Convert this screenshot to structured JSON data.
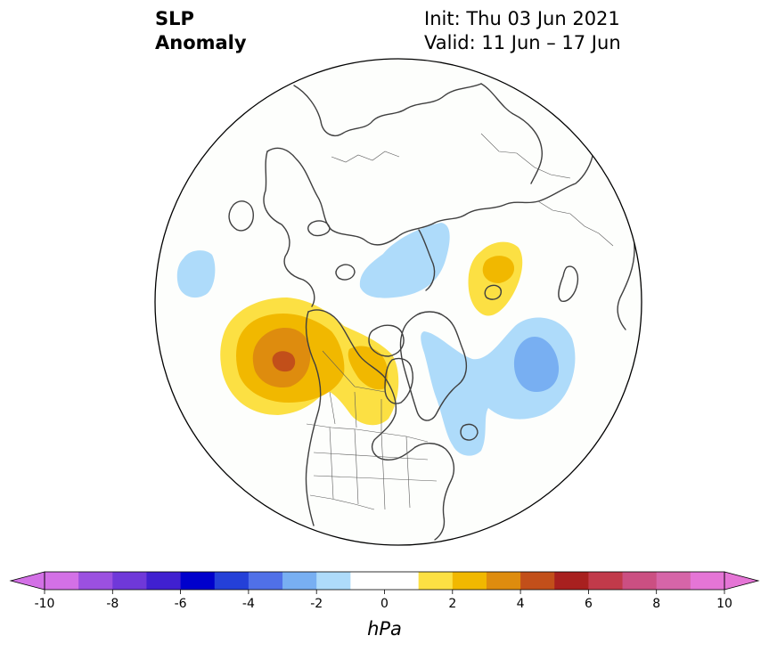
{
  "title": {
    "line1": "SLP",
    "line2": "Anomaly"
  },
  "run_info": {
    "init": "Init: Thu 03 Jun 2021",
    "valid": "Valid: 11 Jun – 17 Jun"
  },
  "map": {
    "projection": "north-polar-stereographic",
    "variable": "sea-level-pressure-anomaly",
    "ocean_color": "#fdfefc",
    "coast_color": "#3f3f3f",
    "features": [
      {
        "name": "positive-anomaly-gulf-of-alaska",
        "peak_hPa": 5
      },
      {
        "name": "positive-anomaly-western-canada",
        "peak_hPa": 2
      },
      {
        "name": "positive-anomaly-central-siberia",
        "peak_hPa": 2
      },
      {
        "name": "negative-anomaly-north-atlantic",
        "peak_hPa": -3
      },
      {
        "name": "negative-anomaly-barents-kara",
        "peak_hPa": -2
      },
      {
        "name": "negative-anomaly-north-pacific",
        "peak_hPa": -2
      }
    ]
  },
  "colorbar": {
    "units": "hPa",
    "tick_labels": [
      "-10",
      "-8",
      "-6",
      "-4",
      "-2",
      "0",
      "2",
      "4",
      "6",
      "8",
      "10"
    ],
    "levels": [
      -10,
      -9,
      -8,
      -7,
      -6,
      -5,
      -4,
      -3,
      -2,
      -1,
      1,
      2,
      3,
      4,
      5,
      6,
      7,
      8,
      9,
      10
    ],
    "colors": [
      "#d370e6",
      "#9b50e0",
      "#6f38d9",
      "#4020d0",
      "#0000cc",
      "#2440d8",
      "#5070e8",
      "#78aff2",
      "#aedbfa",
      "#ffffff",
      "#ffffff",
      "#fce043",
      "#f1b800",
      "#de8c0e",
      "#c24f1a",
      "#a8201f",
      "#c13a4a",
      "#cb4f82",
      "#d665a8",
      "#e575d6"
    ],
    "under_color": "#d370e6",
    "over_color": "#e575d6"
  }
}
